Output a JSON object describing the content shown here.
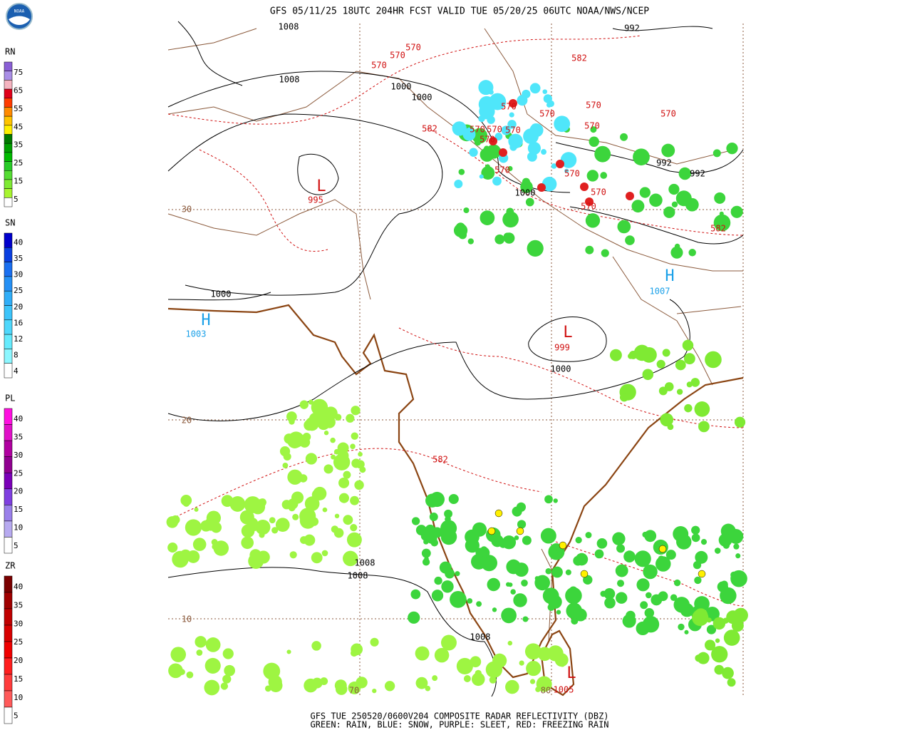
{
  "header": {
    "logo": "NOAA",
    "title": "GFS 05/11/25 18UTC 204HR FCST VALID TUE 05/20/25 06UTC NOAA/NWS/NCEP"
  },
  "legends": [
    {
      "label": "RN",
      "levels": [
        75,
        65,
        55,
        45,
        35,
        25,
        15,
        5
      ],
      "colors": [
        "#8a5fd6",
        "#a98ee6",
        "#f5b4c0",
        "#e0001a",
        "#ff3b00",
        "#ff8a00",
        "#ffc400",
        "#fff000",
        "#007a00",
        "#00a000",
        "#00bb00",
        "#27cc27",
        "#55dd33",
        "#7fea33",
        "#a8f530",
        "#ffffff"
      ]
    },
    {
      "label": "SN",
      "levels": [
        40,
        35,
        30,
        25,
        20,
        16,
        12,
        8,
        4
      ],
      "colors": [
        "#0000cc",
        "#0a3fe0",
        "#1a6ff0",
        "#2590f5",
        "#30aef8",
        "#3cc4fa",
        "#4fd8fc",
        "#66ebfd",
        "#8df7ff",
        "#ffffff"
      ]
    },
    {
      "label": "PL",
      "levels": [
        40,
        35,
        30,
        25,
        20,
        15,
        10,
        5
      ],
      "colors": [
        "#ff10e0",
        "#e010c8",
        "#b000a0",
        "#900090",
        "#7a00b8",
        "#7f3fe0",
        "#9a80ea",
        "#b7aaf0",
        "#ffffff"
      ]
    },
    {
      "label": "ZR",
      "levels": [
        40,
        35,
        30,
        25,
        20,
        15,
        10,
        5
      ],
      "colors": [
        "#7a0000",
        "#a00000",
        "#c00000",
        "#d80000",
        "#f00000",
        "#ff1e1e",
        "#ff3c3c",
        "#ff5a5a",
        "#ffffff"
      ]
    }
  ],
  "map": {
    "pressure_labels": [
      1008,
      992,
      1008,
      1000,
      1000,
      992,
      992,
      1000,
      1000,
      1000,
      1008,
      1008,
      1008
    ],
    "height_labels": [
      570,
      570,
      570,
      582,
      570,
      570,
      570,
      570,
      582,
      570,
      570,
      570,
      570,
      570,
      570,
      570,
      570,
      570,
      582,
      582
    ],
    "lows": [
      {
        "letter": "L",
        "value": 995
      },
      {
        "letter": "L",
        "value": 999
      },
      {
        "letter": "L",
        "value": 1005
      }
    ],
    "highs": [
      {
        "letter": "H",
        "value": 1003
      },
      {
        "letter": "H",
        "value": 1007
      }
    ],
    "latitude_labels": [
      30,
      20,
      10
    ],
    "longitude_labels": [
      80,
      70
    ]
  },
  "footer": {
    "line1": "GFS TUE 250520/0600V204 COMPOSITE RADAR REFLECTIVITY (DBZ)",
    "line2": "GREEN: RAIN, BLUE: SNOW, PURPLE: SLEET, RED: FREEZING RAIN"
  }
}
